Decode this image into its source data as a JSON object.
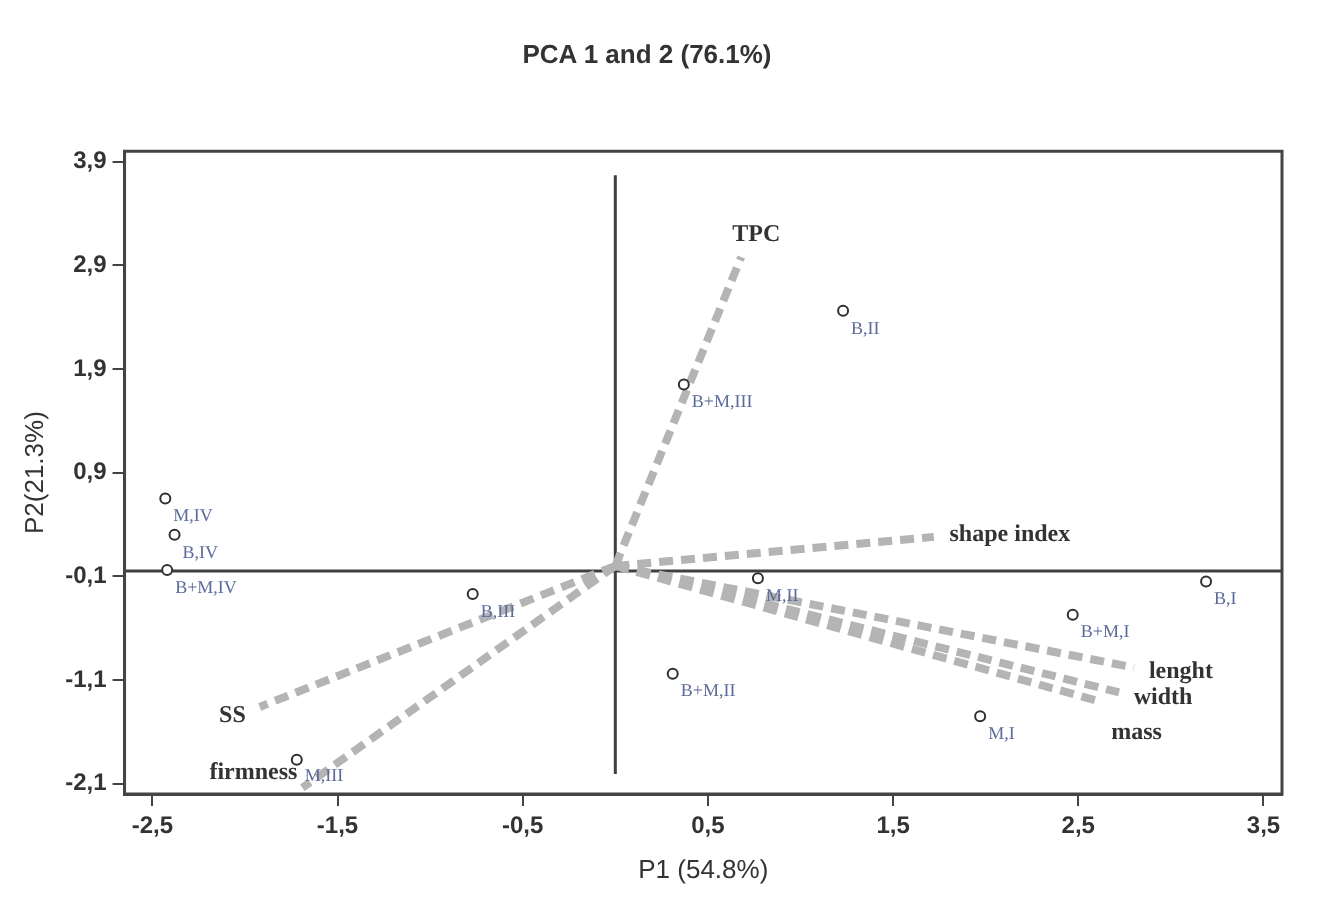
{
  "chart_data": {
    "type": "scatter",
    "title": "PCA 1 and 2 (76.1%)",
    "xlabel": "P1 (54.8%)",
    "ylabel": "P2(21.3%)",
    "xlim": [
      -2.65,
      3.6
    ],
    "ylim": [
      -2.2,
      4.0
    ],
    "xticks": [
      {
        "value": -2.5,
        "label": "-2,5"
      },
      {
        "value": -1.5,
        "label": "-1,5"
      },
      {
        "value": -0.5,
        "label": "-0,5"
      },
      {
        "value": 0.5,
        "label": "0,5"
      },
      {
        "value": 1.5,
        "label": "1,5"
      },
      {
        "value": 2.5,
        "label": "2,5"
      },
      {
        "value": 3.5,
        "label": "3,5"
      }
    ],
    "yticks": [
      {
        "value": -2.1,
        "label": "-2,1"
      },
      {
        "value": -1.1,
        "label": "-1,1"
      },
      {
        "value": -0.1,
        "label": "-0,1"
      },
      {
        "value": 0.9,
        "label": "0,9"
      },
      {
        "value": 1.9,
        "label": "1,9"
      },
      {
        "value": 2.9,
        "label": "2,9"
      },
      {
        "value": 3.9,
        "label": "3,9"
      }
    ],
    "grid": false,
    "legend": false,
    "marker": "circle",
    "ref_lines": [
      {
        "axis": "x",
        "value": 0,
        "color": "#404040"
      },
      {
        "axis": "y",
        "value": -0.05,
        "color": "#404040"
      }
    ],
    "series": [
      {
        "type": "scatter",
        "color": "#303030",
        "x": [
          1.23,
          0.37,
          -2.43,
          -2.38,
          -2.42,
          -0.77,
          -1.72,
          0.31,
          0.77,
          3.19,
          2.47,
          1.97
        ],
        "values": [
          2.46,
          1.75,
          0.65,
          0.3,
          -0.04,
          -0.27,
          -1.87,
          -1.04,
          -0.12,
          -0.15,
          -0.47,
          -1.45
        ]
      },
      {
        "type": "line",
        "color": "#b4b4b4",
        "line_style": "dashed",
        "marker": "none",
        "x": [
          0,
          0.68,
          null,
          0,
          1.72,
          null,
          0,
          -1.92,
          null,
          0,
          -1.69,
          null,
          0,
          2.8,
          null,
          0,
          2.72,
          null,
          0,
          2.6
        ],
        "values": [
          0,
          2.98,
          null,
          0,
          0.28,
          null,
          0,
          -1.36,
          null,
          0,
          -2.14,
          null,
          0,
          -0.98,
          null,
          0,
          -1.22,
          null,
          0,
          -1.3
        ]
      }
    ],
    "annotations": [
      {
        "text": "TPC",
        "x": 0.68,
        "y": 2.98
      },
      {
        "text": "shape index",
        "x": 1.72,
        "y": 0.28
      },
      {
        "text": "SS",
        "x": -1.92,
        "y": -1.36
      },
      {
        "text": "firmness",
        "x": -1.69,
        "y": -2.14
      },
      {
        "text": "lenght",
        "x": 2.8,
        "y": -0.98
      },
      {
        "text": "width",
        "x": 2.72,
        "y": -1.22
      },
      {
        "text": "mass",
        "x": 2.6,
        "y": -1.3
      },
      {
        "text": "B,II",
        "x": 1.23,
        "y": 2.46
      },
      {
        "text": "B+M,III",
        "x": 0.37,
        "y": 1.75
      },
      {
        "text": "M,IV",
        "x": -2.43,
        "y": 0.65
      },
      {
        "text": "B,IV",
        "x": -2.38,
        "y": 0.3
      },
      {
        "text": "B+M,IV",
        "x": -2.42,
        "y": -0.04
      },
      {
        "text": "B,III",
        "x": -0.77,
        "y": -0.27
      },
      {
        "text": "M,III",
        "x": -1.72,
        "y": -1.87
      },
      {
        "text": "B+M,II",
        "x": 0.31,
        "y": -1.04
      },
      {
        "text": "M,II",
        "x": 0.77,
        "y": -0.12
      },
      {
        "text": "B,I",
        "x": 3.19,
        "y": -0.15
      },
      {
        "text": "B+M,I",
        "x": 2.47,
        "y": -0.47
      },
      {
        "text": "M,I",
        "x": 1.97,
        "y": -1.45
      }
    ]
  }
}
